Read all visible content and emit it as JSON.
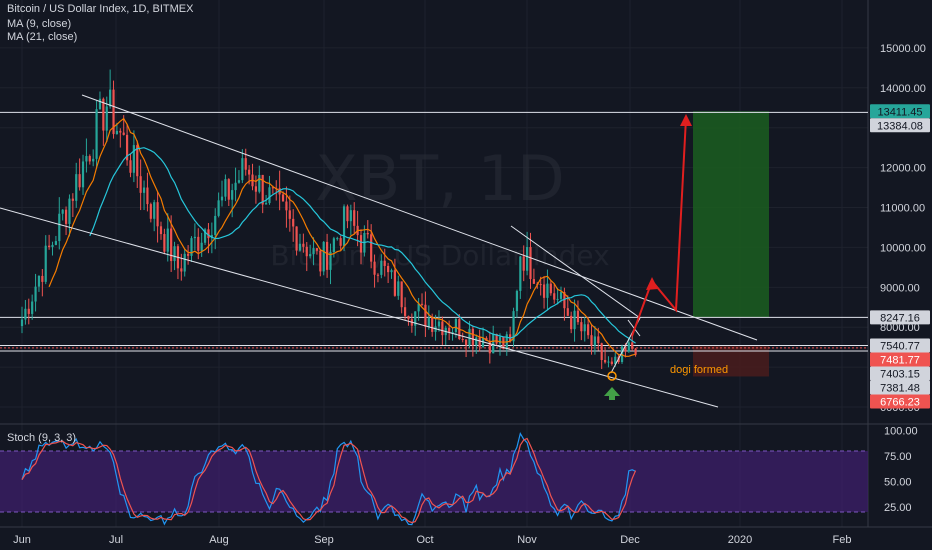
{
  "header": {
    "title": "Bitcoin / US Dollar Index, 1D, BITMEX",
    "ma1": "MA (9, close)",
    "ma2": "MA (21, close)"
  },
  "watermark": {
    "symbol": "XBT, 1D",
    "name": "Bitcoin / US Dollar Index"
  },
  "stoch": {
    "label": "Stoch (9, 3, 3)",
    "upper": 80,
    "lower": 20
  },
  "annotation": {
    "text": "dogi formed",
    "color": "#ff9800"
  },
  "colors": {
    "up": "#26a69a",
    "down": "#ef5350",
    "ma9": "#f57c00",
    "ma21": "#26c6da",
    "stoch_k": "#2196f3",
    "stoch_d": "#ef5350",
    "stoch_band": "#3d1f6b",
    "target_zone": "#1b5e20",
    "arrow": "#e01f1f"
  },
  "chart_data": {
    "type": "candlestick",
    "x_labels": [
      "Jun",
      "Jul",
      "Aug",
      "Sep",
      "Oct",
      "Nov",
      "Dec",
      "2020",
      "Feb"
    ],
    "y_ticks": [
      6000,
      7000,
      8000,
      9000,
      10000,
      11000,
      12000,
      13000,
      14000,
      15000
    ],
    "ylim": [
      5600,
      16200
    ],
    "stoch_ticks": [
      25,
      50,
      75,
      100
    ],
    "price_labels": [
      {
        "text": "13411.45",
        "value": 13411.45,
        "bg": "#26a69a",
        "fg": "#131722"
      },
      {
        "text": "13384.08",
        "value": 13384.08,
        "bg": "#d1d4dc",
        "fg": "#131722"
      },
      {
        "text": "8247.16",
        "value": 8247.16,
        "bg": "#d1d4dc",
        "fg": "#131722"
      },
      {
        "text": "7540.77",
        "value": 7540.77,
        "bg": "#d1d4dc",
        "fg": "#131722"
      },
      {
        "text": "7481.77",
        "value": 7481.77,
        "bg": "#ef5350",
        "fg": "#ffffff"
      },
      {
        "text": "7403.15",
        "value": 7403.15,
        "bg": "#d1d4dc",
        "fg": "#131722"
      },
      {
        "text": "7381.48",
        "value": 7381.48,
        "bg": "#d1d4dc",
        "fg": "#131722"
      },
      {
        "text": "6766.23",
        "value": 6766.23,
        "bg": "#ef5350",
        "fg": "#ffffff"
      }
    ],
    "horizontal_lines": [
      13384.08,
      8247.16,
      7540.77,
      7403.15
    ],
    "key_points": [
      {
        "date": "Jun 1",
        "close": 8200
      },
      {
        "date": "Jun 26",
        "close": 13600
      },
      {
        "date": "Jul 17",
        "close": 9500
      },
      {
        "date": "Aug 6",
        "close": 12000
      },
      {
        "date": "Aug 28",
        "close": 9600
      },
      {
        "date": "Sep 5",
        "close": 10700
      },
      {
        "date": "Sep 24",
        "close": 8400
      },
      {
        "date": "Oct 23",
        "close": 7500
      },
      {
        "date": "Oct 26",
        "close": 9900
      },
      {
        "date": "Nov 22",
        "close": 6900
      },
      {
        "date": "Nov 29",
        "close": 7600
      }
    ]
  }
}
